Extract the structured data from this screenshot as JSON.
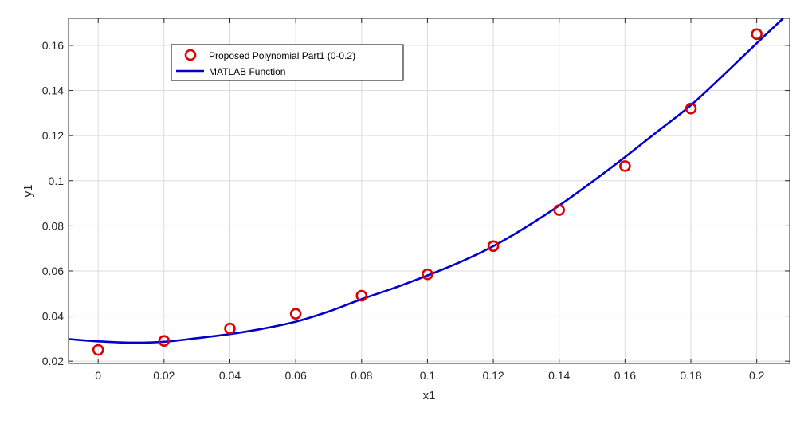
{
  "chart_data": {
    "type": "line",
    "title": "",
    "xlabel": "x1",
    "ylabel": "y1",
    "xlim": [
      -0.009,
      0.21
    ],
    "ylim": [
      0.019,
      0.172
    ],
    "xticks": [
      0,
      0.02,
      0.04,
      0.06,
      0.08,
      0.1,
      0.12,
      0.14,
      0.16,
      0.18,
      0.2
    ],
    "xtick_labels": [
      "0",
      "0.02",
      "0.04",
      "0.06",
      "0.08",
      "0.1",
      "0.12",
      "0.14",
      "0.16",
      "0.18",
      "0.2"
    ],
    "yticks": [
      0.02,
      0.04,
      0.06,
      0.08,
      0.1,
      0.12,
      0.14,
      0.16
    ],
    "ytick_labels": [
      "0.02",
      "0.04",
      "0.06",
      "0.08",
      "0.1",
      "0.12",
      "0.14",
      "0.16"
    ],
    "grid": true,
    "legend_position": "top-left",
    "series": [
      {
        "name": "Proposed Polynomial Part1 (0-0.2)",
        "kind": "markers",
        "color": "#dd0000",
        "x": [
          0,
          0.02,
          0.04,
          0.06,
          0.08,
          0.1,
          0.12,
          0.14,
          0.16,
          0.18,
          0.2
        ],
        "y": [
          0.025,
          0.029,
          0.0345,
          0.041,
          0.049,
          0.0585,
          0.071,
          0.087,
          0.1065,
          0.132,
          0.165
        ]
      },
      {
        "name": "MATLAB Function",
        "kind": "line",
        "color": "#0000cc",
        "x": [
          -0.009,
          0,
          0.01,
          0.02,
          0.03,
          0.04,
          0.05,
          0.06,
          0.07,
          0.08,
          0.09,
          0.1,
          0.11,
          0.12,
          0.13,
          0.14,
          0.15,
          0.16,
          0.17,
          0.18,
          0.19,
          0.2,
          0.208
        ],
        "y": [
          0.0298,
          0.0288,
          0.0282,
          0.0286,
          0.0302,
          0.032,
          0.0344,
          0.0375,
          0.042,
          0.0475,
          0.0525,
          0.058,
          0.064,
          0.071,
          0.0795,
          0.089,
          0.0995,
          0.1105,
          0.122,
          0.1335,
          0.147,
          0.161,
          0.172
        ]
      }
    ]
  }
}
